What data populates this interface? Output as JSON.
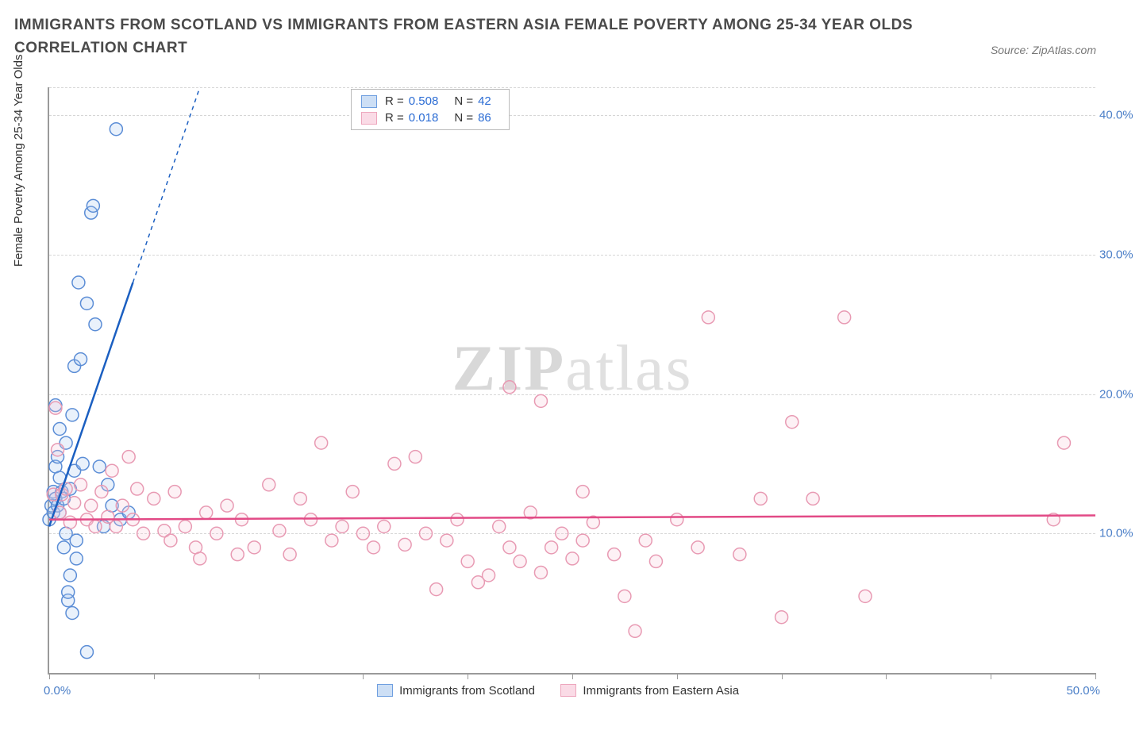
{
  "title": "IMMIGRANTS FROM SCOTLAND VS IMMIGRANTS FROM EASTERN ASIA FEMALE POVERTY AMONG 25-34 YEAR OLDS CORRELATION CHART",
  "source": "Source: ZipAtlas.com",
  "watermark_bold": "ZIP",
  "watermark_light": "atlas",
  "chart": {
    "type": "scatter",
    "background_color": "#ffffff",
    "grid_color": "#d6d6d6",
    "axis_color": "#9a9a9a",
    "tick_label_color": "#4a7ec7",
    "x": {
      "min": 0.0,
      "max": 50.0,
      "tick_step": 5.0,
      "min_label": "0.0%",
      "max_label": "50.0%"
    },
    "y": {
      "min": 0.0,
      "max": 42.0,
      "ticks": [
        10.0,
        20.0,
        30.0,
        40.0
      ],
      "tick_labels": [
        "10.0%",
        "20.0%",
        "30.0%",
        "40.0%"
      ]
    },
    "y_axis_label": "Female Poverty Among 25-34 Year Olds",
    "marker_radius": 8,
    "marker_stroke_width": 1.5,
    "marker_fill_opacity": 0.25,
    "trend_line_width": 2.5,
    "trend_dash_width": 1.5
  },
  "legend_stats": {
    "series_a": {
      "r_label": "R =",
      "r_value": "0.508",
      "n_label": "N =",
      "n_value": "42"
    },
    "series_b": {
      "r_label": "R =",
      "r_value": "0.018",
      "n_label": "N =",
      "n_value": "86"
    }
  },
  "series": [
    {
      "id": "scotland",
      "label": "Immigrants from Scotland",
      "color_stroke": "#5b8dd6",
      "color_fill": "#a9c6ee",
      "swatch_fill": "#cddff5",
      "swatch_border": "#6f9fe0",
      "trend_color": "#1b5fc1",
      "trend": {
        "x1": 0.0,
        "y1": 10.5,
        "x2_solid": 4.0,
        "y2_solid": 28.0,
        "x2_dash": 7.2,
        "y2_dash": 42.0
      },
      "points": [
        [
          0.0,
          11.0
        ],
        [
          0.1,
          12.0
        ],
        [
          0.2,
          11.5
        ],
        [
          0.2,
          13.0
        ],
        [
          0.3,
          12.5
        ],
        [
          0.3,
          14.8
        ],
        [
          0.3,
          19.2
        ],
        [
          0.4,
          12.0
        ],
        [
          0.4,
          15.5
        ],
        [
          0.5,
          11.5
        ],
        [
          0.5,
          14.0
        ],
        [
          0.5,
          17.5
        ],
        [
          0.6,
          13.0
        ],
        [
          0.7,
          9.0
        ],
        [
          0.7,
          12.5
        ],
        [
          0.8,
          10.0
        ],
        [
          0.8,
          16.5
        ],
        [
          0.9,
          5.2
        ],
        [
          0.9,
          5.8
        ],
        [
          1.0,
          7.0
        ],
        [
          1.0,
          13.2
        ],
        [
          1.1,
          4.3
        ],
        [
          1.1,
          18.5
        ],
        [
          1.2,
          14.5
        ],
        [
          1.2,
          22.0
        ],
        [
          1.3,
          8.2
        ],
        [
          1.3,
          9.5
        ],
        [
          1.4,
          28.0
        ],
        [
          1.5,
          22.5
        ],
        [
          1.6,
          15.0
        ],
        [
          1.8,
          1.5
        ],
        [
          1.8,
          26.5
        ],
        [
          2.0,
          33.0
        ],
        [
          2.1,
          33.5
        ],
        [
          2.2,
          25.0
        ],
        [
          2.4,
          14.8
        ],
        [
          2.6,
          10.5
        ],
        [
          2.8,
          13.5
        ],
        [
          3.0,
          12.0
        ],
        [
          3.2,
          39.0
        ],
        [
          3.4,
          11.0
        ],
        [
          3.8,
          11.5
        ]
      ]
    },
    {
      "id": "eastern_asia",
      "label": "Immigrants from Eastern Asia",
      "color_stroke": "#e89ab3",
      "color_fill": "#f7c9d8",
      "swatch_fill": "#fadbe6",
      "swatch_border": "#eda6bd",
      "trend_color": "#e24a86",
      "trend": {
        "x1": 0.0,
        "y1": 11.0,
        "x2_solid": 50.0,
        "y2_solid": 11.3,
        "x2_dash": 50.0,
        "y2_dash": 11.3
      },
      "points": [
        [
          0.2,
          12.8
        ],
        [
          0.3,
          19.0
        ],
        [
          0.4,
          16.0
        ],
        [
          0.5,
          11.5
        ],
        [
          0.6,
          12.8
        ],
        [
          0.8,
          13.2
        ],
        [
          1.0,
          10.8
        ],
        [
          1.2,
          12.2
        ],
        [
          1.5,
          13.5
        ],
        [
          1.8,
          11.0
        ],
        [
          2.0,
          12.0
        ],
        [
          2.2,
          10.5
        ],
        [
          2.5,
          13.0
        ],
        [
          2.8,
          11.2
        ],
        [
          3.0,
          14.5
        ],
        [
          3.2,
          10.5
        ],
        [
          3.5,
          12.0
        ],
        [
          3.8,
          15.5
        ],
        [
          4.0,
          11.0
        ],
        [
          4.2,
          13.2
        ],
        [
          4.5,
          10.0
        ],
        [
          5.0,
          12.5
        ],
        [
          5.5,
          10.2
        ],
        [
          5.8,
          9.5
        ],
        [
          6.0,
          13.0
        ],
        [
          6.5,
          10.5
        ],
        [
          7.0,
          9.0
        ],
        [
          7.2,
          8.2
        ],
        [
          7.5,
          11.5
        ],
        [
          8.0,
          10.0
        ],
        [
          8.5,
          12.0
        ],
        [
          9.0,
          8.5
        ],
        [
          9.2,
          11.0
        ],
        [
          9.8,
          9.0
        ],
        [
          10.5,
          13.5
        ],
        [
          11.0,
          10.2
        ],
        [
          11.5,
          8.5
        ],
        [
          12.0,
          12.5
        ],
        [
          12.5,
          11.0
        ],
        [
          13.0,
          16.5
        ],
        [
          13.5,
          9.5
        ],
        [
          14.0,
          10.5
        ],
        [
          14.5,
          13.0
        ],
        [
          15.0,
          10.0
        ],
        [
          15.5,
          9.0
        ],
        [
          16.0,
          10.5
        ],
        [
          16.5,
          15.0
        ],
        [
          17.0,
          9.2
        ],
        [
          17.5,
          15.5
        ],
        [
          18.0,
          10.0
        ],
        [
          18.5,
          6.0
        ],
        [
          19.0,
          9.5
        ],
        [
          19.5,
          11.0
        ],
        [
          20.0,
          8.0
        ],
        [
          20.5,
          6.5
        ],
        [
          21.0,
          7.0
        ],
        [
          21.5,
          10.5
        ],
        [
          22.0,
          9.0
        ],
        [
          22.0,
          20.5
        ],
        [
          22.5,
          8.0
        ],
        [
          23.0,
          11.5
        ],
        [
          23.5,
          7.2
        ],
        [
          23.5,
          19.5
        ],
        [
          24.0,
          9.0
        ],
        [
          24.5,
          10.0
        ],
        [
          25.0,
          8.2
        ],
        [
          25.5,
          9.5
        ],
        [
          25.5,
          13.0
        ],
        [
          26.0,
          10.8
        ],
        [
          27.0,
          8.5
        ],
        [
          27.5,
          5.5
        ],
        [
          28.0,
          3.0
        ],
        [
          28.5,
          9.5
        ],
        [
          29.0,
          8.0
        ],
        [
          30.0,
          11.0
        ],
        [
          31.0,
          9.0
        ],
        [
          31.5,
          25.5
        ],
        [
          33.0,
          8.5
        ],
        [
          34.0,
          12.5
        ],
        [
          35.0,
          4.0
        ],
        [
          35.5,
          18.0
        ],
        [
          36.5,
          12.5
        ],
        [
          38.0,
          25.5
        ],
        [
          39.0,
          5.5
        ],
        [
          48.0,
          11.0
        ],
        [
          48.5,
          16.5
        ]
      ]
    }
  ]
}
